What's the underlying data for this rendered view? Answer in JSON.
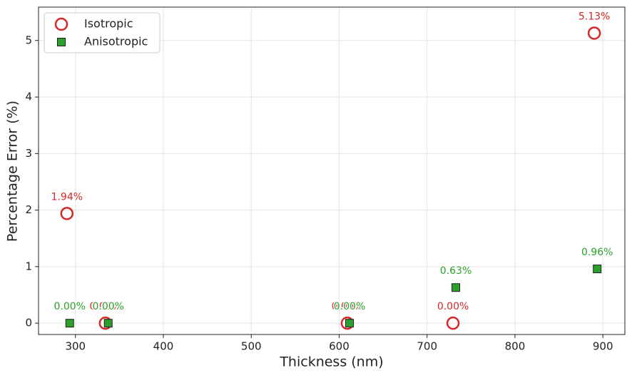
{
  "chart_data": {
    "type": "scatter",
    "x_label": "Thickness (nm)",
    "y_label": "Percentage Error (%)",
    "xlim": [
      258,
      925
    ],
    "ylim": [
      -0.2,
      5.59
    ],
    "xticks": [
      300,
      400,
      500,
      600,
      700,
      800,
      900
    ],
    "yticks": [
      0,
      1,
      2,
      3,
      4,
      5
    ],
    "grid": true,
    "legend": "upper left",
    "series": [
      {
        "name": "Isotropic",
        "color": "#d62728",
        "marker": "circle",
        "x": [
          290.3,
          334.1,
          609.3,
          729.5,
          890.2
        ],
        "values": [
          1.94,
          0.0,
          0.0,
          0.0,
          5.13
        ],
        "value_labels": [
          "1.94%",
          "0.00%",
          "0.00%",
          "0.00%",
          "5.13%"
        ]
      },
      {
        "name": "Anisotropic",
        "color": "#2ca02c",
        "marker": "square",
        "x": [
          293.5,
          337.3,
          611.8,
          732.7,
          893.5
        ],
        "values": [
          0.0,
          0.0,
          0.0,
          0.63,
          0.96
        ],
        "value_labels": [
          "0.00%",
          "0.00%",
          "0.00%",
          "0.63%",
          "0.96%"
        ]
      }
    ]
  }
}
